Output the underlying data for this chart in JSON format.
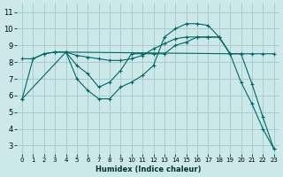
{
  "background_color": "#cce8e8",
  "grid_color": "#aacccc",
  "line_color": "#006666",
  "xlabel": "Humidex (Indice chaleur)",
  "xlim": [
    -0.5,
    23.5
  ],
  "ylim": [
    2.5,
    11.5
  ],
  "xticks": [
    0,
    1,
    2,
    3,
    4,
    5,
    6,
    7,
    8,
    9,
    10,
    11,
    12,
    13,
    14,
    15,
    16,
    17,
    18,
    19,
    20,
    21,
    22,
    23
  ],
  "yticks": [
    3,
    4,
    5,
    6,
    7,
    8,
    9,
    10,
    11
  ],
  "line1_x": [
    0,
    1,
    2,
    3,
    4,
    5,
    6,
    7,
    8,
    9,
    10,
    11,
    12,
    13,
    14,
    15,
    16,
    17,
    18,
    19,
    20,
    21,
    22,
    23
  ],
  "line1_y": [
    5.8,
    8.2,
    8.5,
    8.6,
    8.6,
    7.0,
    6.3,
    5.8,
    5.8,
    6.5,
    6.8,
    7.2,
    7.8,
    9.5,
    10.0,
    10.3,
    10.3,
    10.2,
    9.5,
    8.5,
    8.5,
    6.7,
    4.7,
    2.8
  ],
  "line2_x": [
    0,
    1,
    2,
    3,
    4,
    5,
    6,
    7,
    8,
    9,
    10,
    11,
    12,
    13,
    14,
    15,
    16,
    17,
    18,
    19,
    20,
    21,
    22,
    23
  ],
  "line2_y": [
    8.2,
    8.2,
    8.5,
    8.6,
    8.6,
    8.4,
    8.3,
    8.2,
    8.1,
    8.1,
    8.2,
    8.4,
    8.8,
    9.1,
    9.4,
    9.5,
    9.5,
    9.5,
    9.5,
    8.5,
    8.5,
    8.5,
    8.5,
    8.5
  ],
  "line3_x": [
    4,
    19
  ],
  "line3_y": [
    8.6,
    8.5
  ],
  "line4_x": [
    0,
    4,
    5,
    6,
    7,
    8,
    9,
    10,
    11,
    12,
    13,
    14,
    15,
    16,
    17,
    18,
    19,
    20,
    21,
    22,
    23
  ],
  "line4_y": [
    5.8,
    8.6,
    7.8,
    7.3,
    6.5,
    6.8,
    7.5,
    8.5,
    8.5,
    8.5,
    8.5,
    9.0,
    9.2,
    9.5,
    9.5,
    9.5,
    8.5,
    6.8,
    5.5,
    4.0,
    2.8
  ]
}
